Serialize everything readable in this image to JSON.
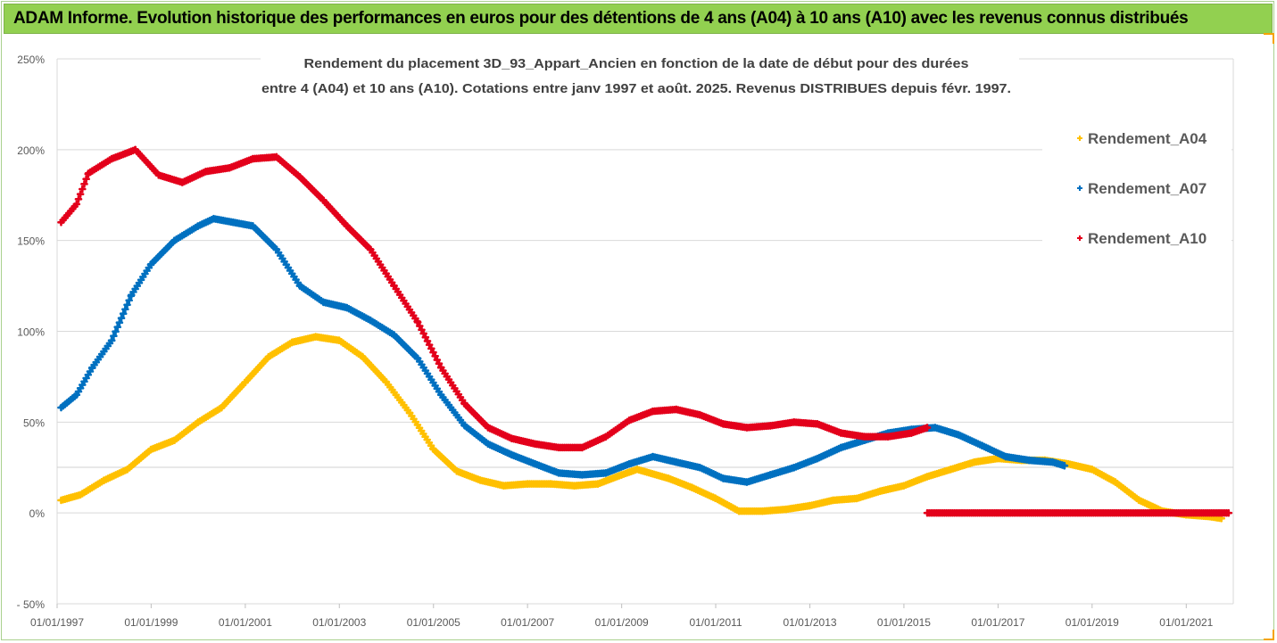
{
  "header": {
    "title": "ADAM Informe. Evolution historique des performances en euros pour des détentions de 4 ans (A04) à 10 ans (A10) avec les revenus connus distribués"
  },
  "chart_data": {
    "type": "scatter",
    "title_lines": [
      "Rendement du placement 3D_93_Appart_Ancien en fonction de la date de début pour des durées",
      "entre 4 (A04) et 10 ans (A10). Cotations entre janv 1997 et août. 2025. Revenus DISTRIBUES depuis févr. 1997."
    ],
    "xlabel": "",
    "ylabel": "",
    "x_ticks": [
      "01/01/1997",
      "01/01/1999",
      "01/01/2001",
      "01/01/2003",
      "01/01/2005",
      "01/01/2007",
      "01/01/2009",
      "01/01/2011",
      "01/01/2013",
      "01/01/2015",
      "01/01/2017",
      "01/01/2019",
      "01/01/2021"
    ],
    "xlim": [
      "1997-01-01",
      "2022-01-01"
    ],
    "y_ticks": [
      "250%",
      "200%",
      "150%",
      "100%",
      "50%",
      "0%",
      "- 50%"
    ],
    "y_tick_values": [
      250,
      200,
      150,
      100,
      50,
      0,
      -50
    ],
    "ylim": [
      -50,
      250
    ],
    "grid": "horizontal",
    "legend_position": "right",
    "series": [
      {
        "name": "Rendement_A04",
        "color": "#ffc000",
        "points": [
          [
            "1997-02-01",
            7
          ],
          [
            "1997-07-01",
            10
          ],
          [
            "1998-01-01",
            18
          ],
          [
            "1998-07-01",
            24
          ],
          [
            "1999-01-01",
            35
          ],
          [
            "1999-07-01",
            40
          ],
          [
            "2000-01-01",
            50
          ],
          [
            "2000-07-01",
            58
          ],
          [
            "2001-01-01",
            72
          ],
          [
            "2001-07-01",
            86
          ],
          [
            "2002-01-01",
            94
          ],
          [
            "2002-07-01",
            97
          ],
          [
            "2003-01-01",
            95
          ],
          [
            "2003-07-01",
            86
          ],
          [
            "2004-01-01",
            72
          ],
          [
            "2004-07-01",
            55
          ],
          [
            "2005-01-01",
            35
          ],
          [
            "2005-07-01",
            23
          ],
          [
            "2006-01-01",
            18
          ],
          [
            "2006-07-01",
            15
          ],
          [
            "2007-01-01",
            16
          ],
          [
            "2007-07-01",
            16
          ],
          [
            "2008-01-01",
            15
          ],
          [
            "2008-07-01",
            16
          ],
          [
            "2009-01-01",
            21
          ],
          [
            "2009-05-01",
            24
          ],
          [
            "2010-01-01",
            19
          ],
          [
            "2010-07-01",
            14
          ],
          [
            "2011-01-01",
            8
          ],
          [
            "2011-07-01",
            1
          ],
          [
            "2012-01-01",
            1
          ],
          [
            "2012-07-01",
            2
          ],
          [
            "2013-01-01",
            4
          ],
          [
            "2013-07-01",
            7
          ],
          [
            "2014-01-01",
            8
          ],
          [
            "2014-07-01",
            12
          ],
          [
            "2015-01-01",
            15
          ],
          [
            "2015-07-01",
            20
          ],
          [
            "2016-01-01",
            24
          ],
          [
            "2016-07-01",
            28
          ],
          [
            "2017-01-01",
            30
          ],
          [
            "2017-07-01",
            29
          ],
          [
            "2018-01-01",
            29
          ],
          [
            "2018-07-01",
            27
          ],
          [
            "2019-01-01",
            24
          ],
          [
            "2019-07-01",
            17
          ],
          [
            "2020-01-01",
            7
          ],
          [
            "2020-07-01",
            1
          ],
          [
            "2021-01-01",
            -1
          ],
          [
            "2021-07-01",
            -2
          ],
          [
            "2021-10-01",
            -3
          ]
        ]
      },
      {
        "name": "Rendement_A07",
        "color": "#0070c0",
        "points": [
          [
            "1997-02-01",
            58
          ],
          [
            "1997-06-01",
            65
          ],
          [
            "1997-10-01",
            80
          ],
          [
            "1998-03-01",
            95
          ],
          [
            "1998-08-01",
            120
          ],
          [
            "1999-01-01",
            137
          ],
          [
            "1999-07-01",
            150
          ],
          [
            "2000-01-01",
            158
          ],
          [
            "2000-05-01",
            162
          ],
          [
            "2000-10-01",
            160
          ],
          [
            "2001-03-01",
            158
          ],
          [
            "2001-09-01",
            145
          ],
          [
            "2002-03-01",
            125
          ],
          [
            "2002-09-01",
            116
          ],
          [
            "2003-03-01",
            113
          ],
          [
            "2003-09-01",
            106
          ],
          [
            "2004-03-01",
            98
          ],
          [
            "2004-09-01",
            85
          ],
          [
            "2005-03-01",
            65
          ],
          [
            "2005-09-01",
            48
          ],
          [
            "2006-03-01",
            38
          ],
          [
            "2006-09-01",
            32
          ],
          [
            "2007-03-01",
            27
          ],
          [
            "2007-09-01",
            22
          ],
          [
            "2008-03-01",
            21
          ],
          [
            "2008-09-01",
            22
          ],
          [
            "2009-03-01",
            27
          ],
          [
            "2009-09-01",
            31
          ],
          [
            "2010-03-01",
            28
          ],
          [
            "2010-09-01",
            25
          ],
          [
            "2011-03-01",
            19
          ],
          [
            "2011-09-01",
            17
          ],
          [
            "2012-03-01",
            21
          ],
          [
            "2012-09-01",
            25
          ],
          [
            "2013-03-01",
            30
          ],
          [
            "2013-09-01",
            36
          ],
          [
            "2014-03-01",
            40
          ],
          [
            "2014-09-01",
            44
          ],
          [
            "2015-03-01",
            46
          ],
          [
            "2015-09-01",
            47
          ],
          [
            "2016-03-01",
            43
          ],
          [
            "2016-09-01",
            37
          ],
          [
            "2017-03-01",
            31
          ],
          [
            "2017-09-01",
            29
          ],
          [
            "2018-03-01",
            28
          ],
          [
            "2018-06-01",
            26
          ]
        ]
      },
      {
        "name": "Rendement_A10",
        "color": "#e3001b",
        "points": [
          [
            "1997-02-01",
            160
          ],
          [
            "1997-06-01",
            170
          ],
          [
            "1997-09-01",
            187
          ],
          [
            "1998-03-01",
            195
          ],
          [
            "1998-09-01",
            200
          ],
          [
            "1999-03-01",
            186
          ],
          [
            "1999-09-01",
            182
          ],
          [
            "2000-03-01",
            188
          ],
          [
            "2000-09-01",
            190
          ],
          [
            "2001-03-01",
            195
          ],
          [
            "2001-09-01",
            196
          ],
          [
            "2002-03-01",
            185
          ],
          [
            "2002-09-01",
            172
          ],
          [
            "2003-03-01",
            158
          ],
          [
            "2003-09-01",
            145
          ],
          [
            "2004-03-01",
            125
          ],
          [
            "2004-09-01",
            105
          ],
          [
            "2005-03-01",
            80
          ],
          [
            "2005-09-01",
            60
          ],
          [
            "2006-03-01",
            47
          ],
          [
            "2006-09-01",
            41
          ],
          [
            "2007-03-01",
            38
          ],
          [
            "2007-09-01",
            36
          ],
          [
            "2008-03-01",
            36
          ],
          [
            "2008-09-01",
            42
          ],
          [
            "2009-03-01",
            51
          ],
          [
            "2009-09-01",
            56
          ],
          [
            "2010-03-01",
            57
          ],
          [
            "2010-09-01",
            54
          ],
          [
            "2011-03-01",
            49
          ],
          [
            "2011-09-01",
            47
          ],
          [
            "2012-03-01",
            48
          ],
          [
            "2012-09-01",
            50
          ],
          [
            "2013-03-01",
            49
          ],
          [
            "2013-09-01",
            44
          ],
          [
            "2014-03-01",
            42
          ],
          [
            "2014-09-01",
            42
          ],
          [
            "2015-03-01",
            44
          ],
          [
            "2015-07-01",
            47
          ]
        ],
        "tail": {
          "from": "2015-07-01",
          "to": "2021-12-01",
          "value": 0
        }
      }
    ]
  }
}
